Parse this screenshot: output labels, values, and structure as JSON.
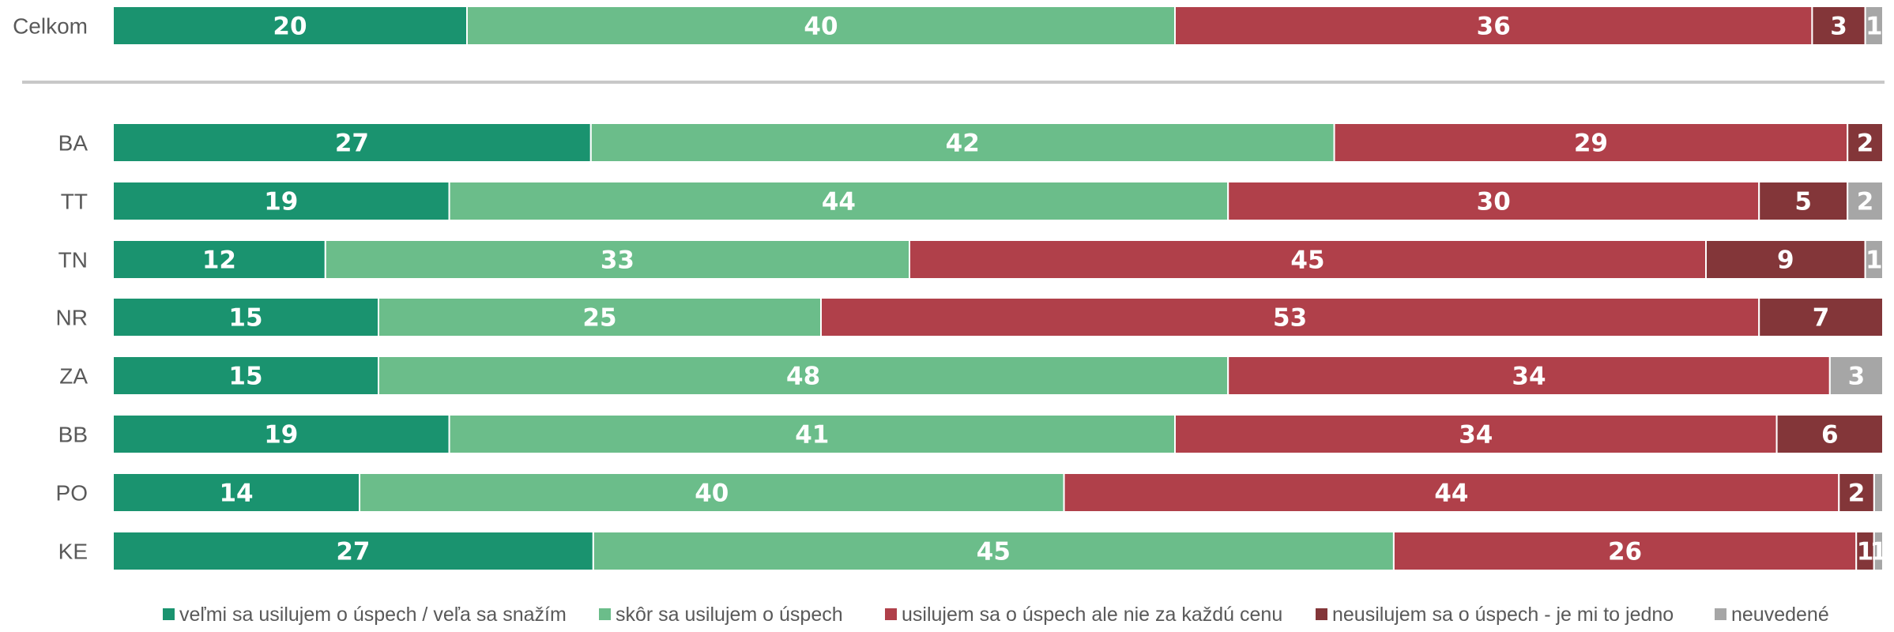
{
  "chart_data": {
    "type": "bar",
    "orientation": "horizontal",
    "stacked": true,
    "xlim": [
      0,
      100
    ],
    "categories": [
      "Celkom",
      "BA",
      "TT",
      "TN",
      "NR",
      "ZA",
      "BB",
      "PO",
      "KE"
    ],
    "series": [
      {
        "name": "veľmi sa usilujem o úspech / veľa sa snažím",
        "color": "#1a936f",
        "values": [
          20,
          27,
          19,
          12,
          15,
          15,
          19,
          14,
          27
        ]
      },
      {
        "name": "skôr sa usilujem o úspech",
        "color": "#6bbd8a",
        "values": [
          40,
          42,
          44,
          33,
          25,
          48,
          41,
          40,
          45
        ]
      },
      {
        "name": "usilujem sa o úspech ale nie za každú cenu",
        "color": "#b0404a",
        "values": [
          36,
          29,
          30,
          45,
          53,
          34,
          34,
          44,
          26
        ]
      },
      {
        "name": "neusilujem sa o úspech - je mi to jedno",
        "color": "#833639",
        "values": [
          3,
          2,
          5,
          9,
          7,
          0,
          6,
          2,
          1
        ]
      },
      {
        "name": "neuvedené",
        "color": "#a6a6a6",
        "values": [
          1,
          0,
          2,
          1,
          0,
          3,
          0,
          0.5,
          0.5
        ]
      }
    ],
    "data_labels": [
      [
        "20",
        "40",
        "36",
        "3",
        "1"
      ],
      [
        "27",
        "42",
        "29",
        "2",
        ""
      ],
      [
        "19",
        "44",
        "30",
        "5",
        "2"
      ],
      [
        "12",
        "33",
        "45",
        "9",
        "1"
      ],
      [
        "15",
        "25",
        "53",
        "7",
        ""
      ],
      [
        "15",
        "48",
        "34",
        "",
        "3"
      ],
      [
        "19",
        "41",
        "34",
        "6",
        ""
      ],
      [
        "14",
        "40",
        "44",
        "2",
        ""
      ],
      [
        "27",
        "45",
        "26",
        "1",
        "1"
      ]
    ],
    "separator_after_category": "Celkom",
    "legend_position": "bottom",
    "grid": false
  }
}
